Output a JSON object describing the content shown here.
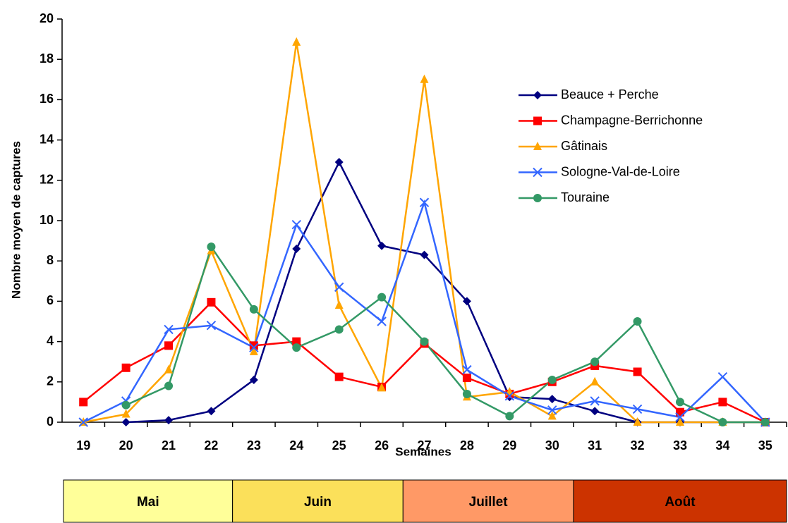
{
  "chart_data": {
    "type": "line",
    "x_label": "Semaines",
    "y_label": "Nombre moyen de captures",
    "categories": [
      "19",
      "20",
      "21",
      "22",
      "23",
      "24",
      "25",
      "26",
      "27",
      "28",
      "29",
      "30",
      "31",
      "32",
      "33",
      "34",
      "35"
    ],
    "series": [
      {
        "name": "Beauce + Perche",
        "color": "#000080",
        "marker": "diamond",
        "values": [
          null,
          0,
          0.1,
          0.55,
          2.1,
          8.6,
          12.9,
          8.75,
          8.3,
          6.0,
          1.25,
          1.15,
          0.55,
          0,
          0,
          0,
          0
        ]
      },
      {
        "name": "Champagne-Berrichonne",
        "color": "#ff0000",
        "marker": "square",
        "values": [
          1.0,
          2.7,
          3.8,
          5.95,
          3.8,
          4.0,
          2.25,
          1.75,
          3.9,
          2.2,
          1.4,
          2.0,
          2.8,
          2.5,
          0.5,
          1.0,
          0
        ]
      },
      {
        "name": "Gâtinais",
        "color": "#ffa500",
        "marker": "triangle",
        "values": [
          0,
          0.4,
          2.6,
          8.5,
          3.5,
          18.85,
          5.8,
          1.7,
          17.0,
          1.25,
          1.5,
          0.3,
          2.0,
          0,
          0,
          0,
          0
        ]
      },
      {
        "name": "Sologne-Val-de-Loire",
        "color": "#3366ff",
        "marker": "x",
        "values": [
          0,
          1.05,
          4.6,
          4.8,
          3.7,
          9.8,
          6.7,
          5.0,
          10.9,
          2.6,
          1.3,
          0.6,
          1.05,
          0.65,
          0.25,
          2.25,
          0
        ]
      },
      {
        "name": "Touraine",
        "color": "#339966",
        "marker": "circle",
        "values": [
          null,
          0.85,
          1.8,
          8.7,
          5.6,
          3.7,
          4.6,
          6.2,
          4.0,
          1.4,
          0.3,
          2.1,
          3.0,
          5.0,
          1.0,
          0,
          0
        ]
      }
    ],
    "ylim": [
      0,
      20
    ],
    "yticks": [
      0,
      2,
      4,
      6,
      8,
      10,
      12,
      14,
      16,
      18,
      20
    ],
    "grid": false,
    "legend": "right",
    "months": [
      {
        "label": "Mai",
        "color": "#ffff99"
      },
      {
        "label": "Juin",
        "color": "#fbe05a"
      },
      {
        "label": "Juillet",
        "color": "#ff9966"
      },
      {
        "label": "Août",
        "color": "#cc3300"
      }
    ]
  }
}
